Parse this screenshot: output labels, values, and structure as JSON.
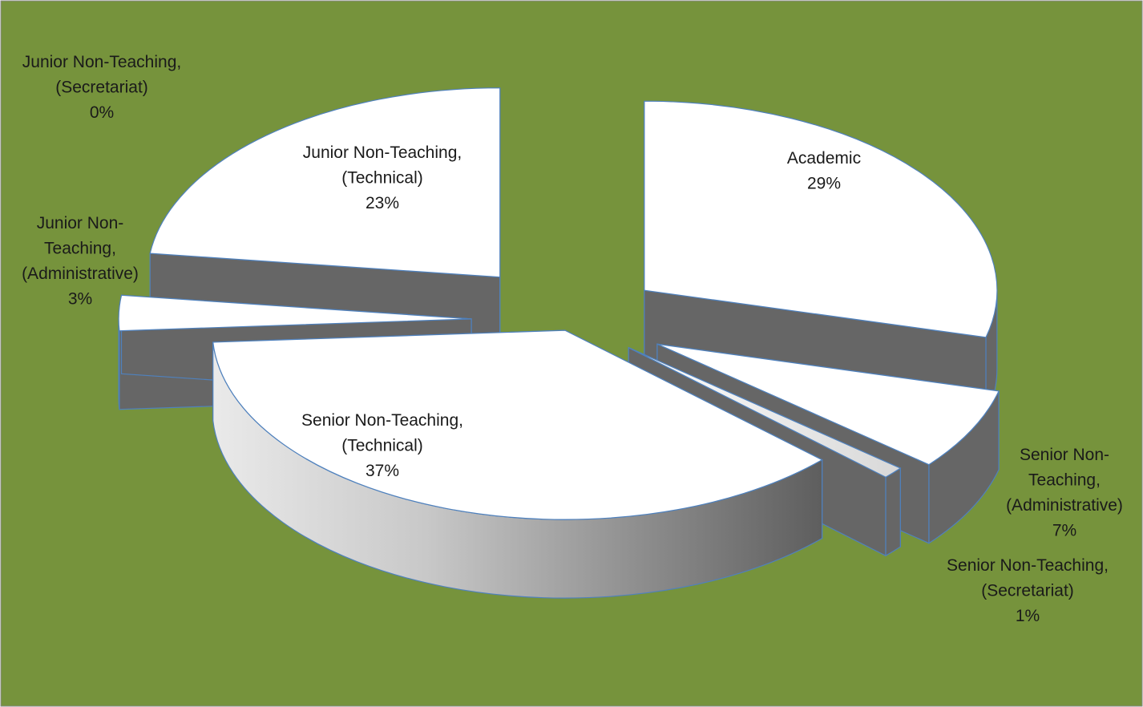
{
  "chart_data": {
    "type": "pie",
    "style": "3d-exploded",
    "title": "",
    "colors": {
      "background": "#76933c",
      "border": "#8a8a8a",
      "slice_top": "#ffffff",
      "slice_outline": "#4f81bd",
      "slice_side": "#666666",
      "slice_side_light": "#e2e2e2"
    },
    "slices": [
      {
        "label_lines": [
          "Academic"
        ],
        "percent_label": "29%",
        "value": 29
      },
      {
        "label_lines": [
          "Senior Non-",
          "Teaching,",
          "(Administrative)"
        ],
        "percent_label": "7%",
        "value": 7
      },
      {
        "label_lines": [
          "Senior Non-Teaching,",
          "(Secretariat)"
        ],
        "percent_label": "1%",
        "value": 1
      },
      {
        "label_lines": [
          "Senior Non-Teaching,",
          "(Technical)"
        ],
        "percent_label": "37%",
        "value": 37
      },
      {
        "label_lines": [
          "Junior Non-",
          "Teaching,",
          "(Administrative)"
        ],
        "percent_label": "3%",
        "value": 3
      },
      {
        "label_lines": [
          "Junior Non-Teaching,",
          "(Technical)"
        ],
        "percent_label": "23%",
        "value": 23
      },
      {
        "label_lines": [
          "Junior Non-Teaching,",
          "(Secretariat)"
        ],
        "percent_label": "0%",
        "value": 0
      }
    ]
  }
}
